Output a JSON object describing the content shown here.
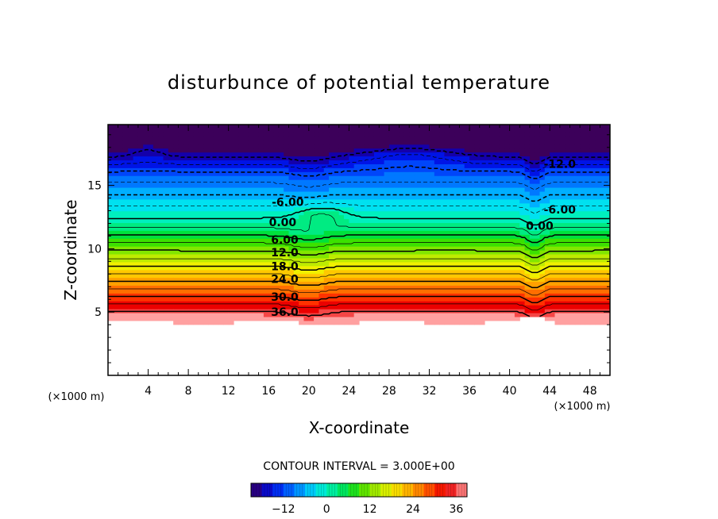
{
  "chart_data": {
    "type": "heatmap",
    "title": "disturbunce of potential temperature",
    "xlabel": "X-coordinate",
    "ylabel": "Z-coordinate",
    "x_units_note": "(×1000 m)",
    "z_units_note": "(×1000 m)",
    "xlim": [
      0,
      50
    ],
    "ylim": [
      0,
      19.8
    ],
    "x_ticks": [
      4,
      8,
      12,
      16,
      20,
      24,
      28,
      32,
      36,
      40,
      44,
      48
    ],
    "y_ticks": [
      5,
      10,
      15
    ],
    "contour_interval_text": "CONTOUR INTERVAL = 3.000E+00",
    "contour_labels": [
      {
        "text": "-6.00",
        "x": 17.9,
        "z": 13.7
      },
      {
        "text": "0.00",
        "x": 17.4,
        "z": 12.1
      },
      {
        "text": "6.00",
        "x": 17.6,
        "z": 10.7
      },
      {
        "text": "12.0",
        "x": 17.6,
        "z": 9.7
      },
      {
        "text": "18.0",
        "x": 17.6,
        "z": 8.6
      },
      {
        "text": "24.0",
        "x": 17.6,
        "z": 7.6
      },
      {
        "text": "30.0",
        "x": 17.6,
        "z": 6.2
      },
      {
        "text": "36.0",
        "x": 17.6,
        "z": 5.0
      },
      {
        "text": "-12.0",
        "x": 45.0,
        "z": 16.7
      },
      {
        "text": "-6.00",
        "x": 45.0,
        "z": 13.1
      },
      {
        "text": "0.00",
        "x": 43.0,
        "z": 11.8
      }
    ],
    "colorbar": {
      "ticks": [
        -12,
        0,
        12,
        24,
        36
      ],
      "min": -21,
      "max": 39
    }
  }
}
